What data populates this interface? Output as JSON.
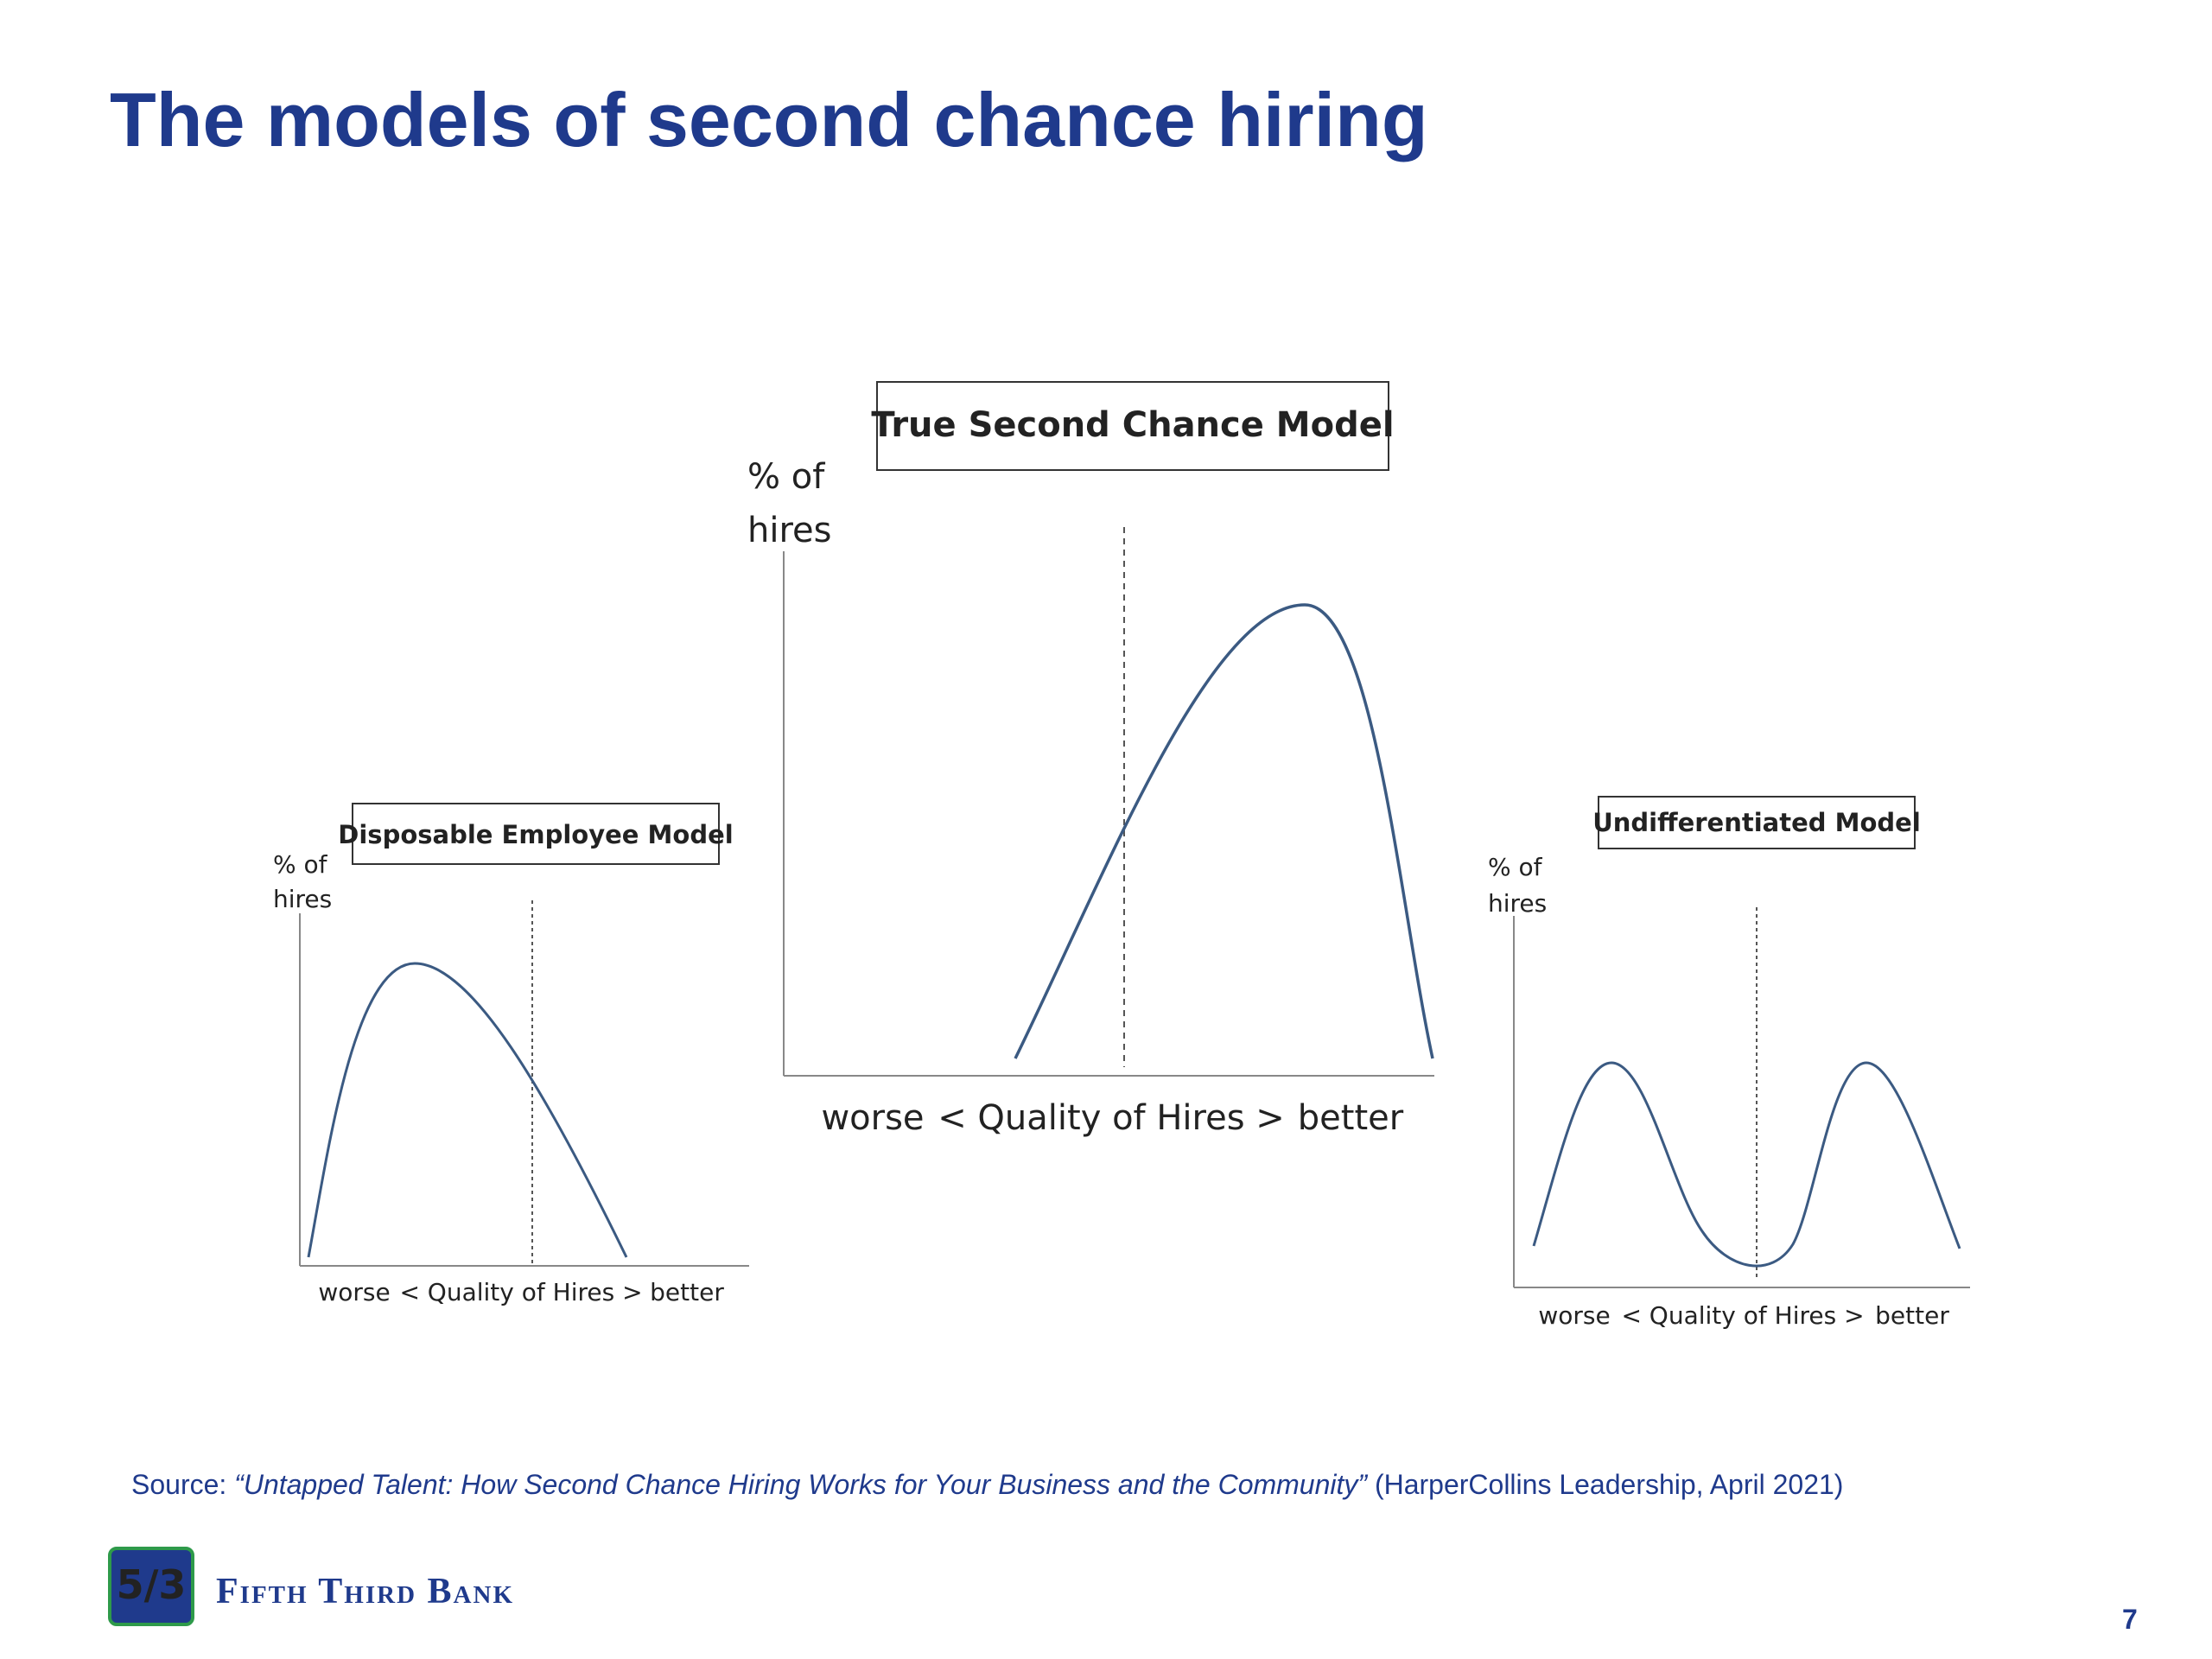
{
  "slide": {
    "title": "The models of second chance hiring",
    "page_number": "7"
  },
  "diagrams": [
    {
      "id": "disposable",
      "title": "Disposable Employee Model",
      "ylabel_line1": "% of",
      "ylabel_line2": "hires",
      "x_left": "worse",
      "x_center": "< Quality of Hires >",
      "x_right": "better"
    },
    {
      "id": "true-second-chance",
      "title": "True Second Chance Model",
      "ylabel_line1": "% of",
      "ylabel_line2": "hires",
      "x_left": "worse",
      "x_center": "< Quality of Hires >",
      "x_right": "better"
    },
    {
      "id": "undifferentiated",
      "title": "Undifferentiated Model",
      "ylabel_line1": "% of",
      "ylabel_line2": "hires",
      "x_left": "worse",
      "x_center": "< Quality of Hires >",
      "x_right": "better"
    }
  ],
  "source": {
    "prefix": "Source: ",
    "title": "“Untapped Talent: How Second Chance Hiring Works for Your Business and the Community”",
    "suffix": " (HarperCollins Leadership, April 2021)"
  },
  "brand": {
    "name": "Fifth Third Bank",
    "logo_text": "5/3",
    "primary_color": "#1f3a8c",
    "logo_green": "#2e9a4a"
  }
}
